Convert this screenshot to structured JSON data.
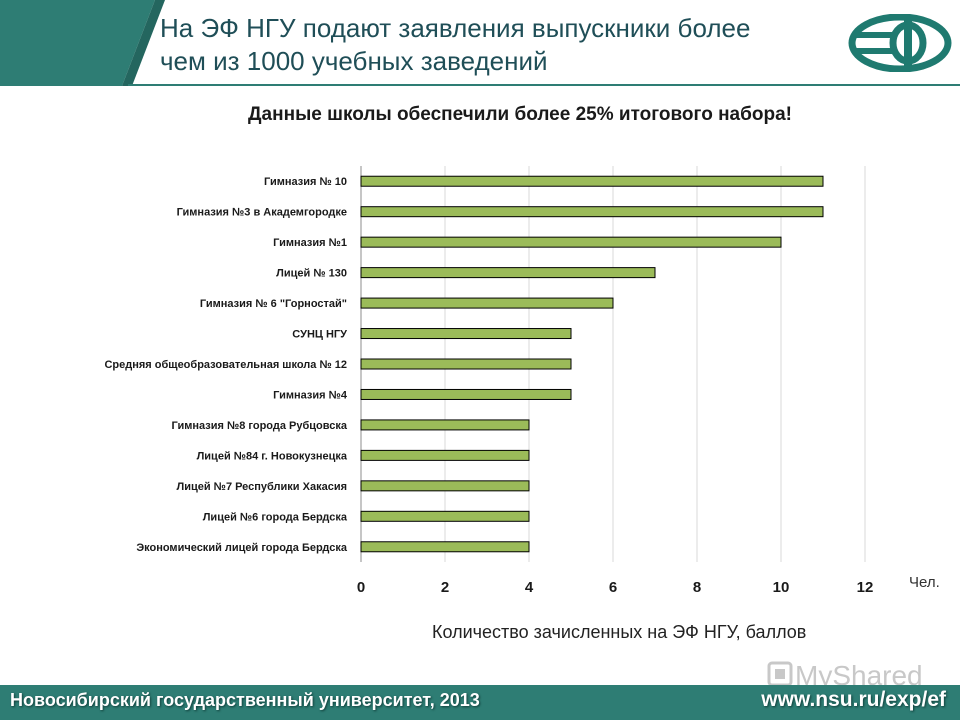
{
  "slide": {
    "title": "На ЭФ НГУ подают заявления выпускники более\nчем из 1000 учебных заведений",
    "accent_color": "#2e7d74",
    "header_dark_color": "#1f4e57",
    "logo": "ef-nsu-logo-icon",
    "unit_label": "Чел.",
    "footer_left": "Новосибирский государственный университет, 2013",
    "footer_right": "www.nsu.ru/exp/ef",
    "watermark": "MyShared"
  },
  "chart_data": {
    "type": "bar",
    "orientation": "horizontal",
    "title": "Данные школы обеспечили более 25% итогового набора!",
    "xlabel": "Количество зачисленных на ЭФ НГУ, баллов",
    "ylabel": "",
    "categories": [
      "Гимназия № 10",
      "Гимназия №3 в Академгородке",
      "Гимназия №1",
      "Лицей № 130",
      "Гимназия № 6 \"Горностай\"",
      "СУНЦ НГУ",
      "Средняя общеобразовательная школа № 12",
      "Гимназия №4",
      "Гимназия №8 города Рубцовска",
      "Лицей №84 г. Новокузнецка",
      "Лицей №7 Республики Хакасия",
      "Лицей №6 города Бердска",
      "Экономический лицей города Бердска"
    ],
    "values": [
      11,
      11,
      10,
      7,
      6,
      5,
      5,
      5,
      4,
      4,
      4,
      4,
      4
    ],
    "xlim": [
      0,
      12
    ],
    "xticks": [
      0,
      2,
      4,
      6,
      8,
      10,
      12
    ],
    "grid": "vertical",
    "bar_color": "#9bbb59",
    "bar_edge_color": "#000000"
  }
}
